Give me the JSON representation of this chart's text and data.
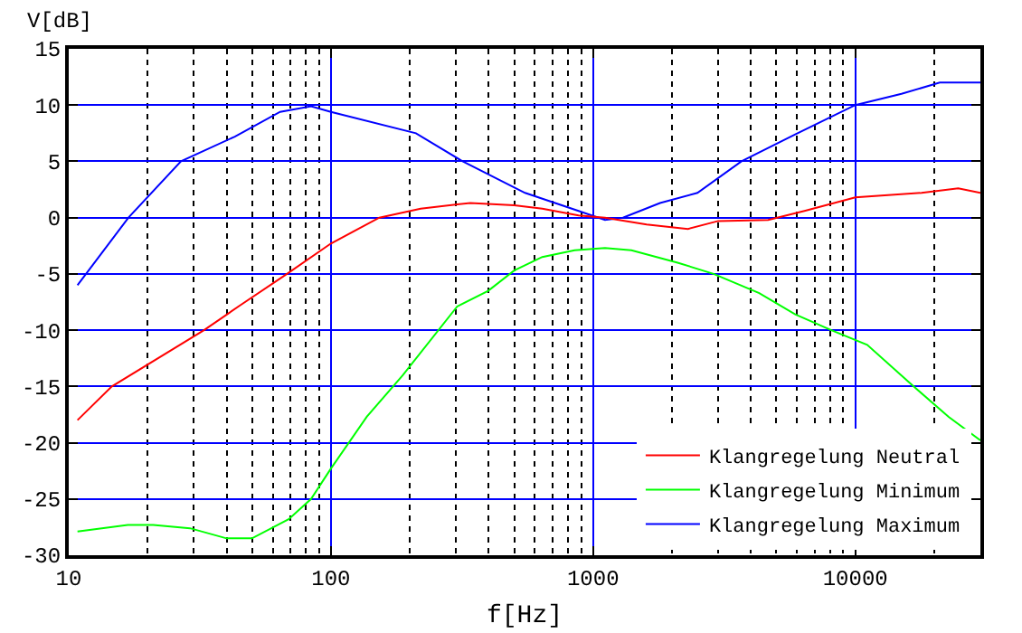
{
  "chart_data": {
    "type": "line",
    "xlabel": "f[Hz]",
    "ylabel": "V[dB]",
    "log": "x",
    "xlim": [
      10,
      30000
    ],
    "xticks": [
      10,
      {
        "value": 20,
        "label": null
      },
      {
        "value": 30,
        "label": null
      },
      {
        "value": 40,
        "label": null
      },
      {
        "value": 50,
        "label": null
      },
      {
        "value": 60,
        "label": null
      },
      {
        "value": 70,
        "label": null
      },
      {
        "value": 80,
        "label": null
      },
      {
        "value": 90,
        "label": null
      },
      100,
      {
        "value": 200,
        "label": null
      },
      {
        "value": 300,
        "label": null
      },
      {
        "value": 400,
        "label": null
      },
      {
        "value": 500,
        "label": null
      },
      {
        "value": 600,
        "label": null
      },
      {
        "value": 700,
        "label": null
      },
      {
        "value": 800,
        "label": null
      },
      {
        "value": 900,
        "label": null
      },
      1000,
      {
        "value": 2000,
        "label": null
      },
      {
        "value": 3000,
        "label": null
      },
      {
        "value": 4000,
        "label": null
      },
      {
        "value": 5000,
        "label": null
      },
      {
        "value": 6000,
        "label": null
      },
      {
        "value": 7000,
        "label": null
      },
      {
        "value": 8000,
        "label": null
      },
      {
        "value": 9000,
        "label": null
      },
      10000,
      {
        "value": 20000,
        "label": null
      }
    ],
    "ylim": [
      -30,
      15
    ],
    "yticks": [
      -30,
      -25,
      -20,
      -15,
      -10,
      -5,
      0,
      5,
      10,
      15
    ],
    "grid": true,
    "legend": "bottom right",
    "marker": "none",
    "line_style": "solid",
    "series": [
      {
        "name": "Klangregelung Neutral",
        "color": "#ff0000",
        "x": [
          10.8,
          14.6,
          32.8,
          45,
          67,
          100,
          153,
          220,
          340,
          500,
          640,
          880,
          1110,
          1600,
          2300,
          3000,
          4650,
          6400,
          10000,
          17900,
          24700,
          30000
        ],
        "values": [
          -18,
          -15,
          -10,
          -7.8,
          -5.1,
          -2.3,
          0,
          0.8,
          1.3,
          1.1,
          0.8,
          0.2,
          0,
          -0.6,
          -1,
          -0.3,
          -0.2,
          0.6,
          1.8,
          2.2,
          2.6,
          2.2
        ]
      },
      {
        "name": "Klangregelung Minimum",
        "color": "#00ff00",
        "x": [
          10.8,
          16.8,
          21,
          29,
          40,
          50,
          69,
          84,
          100,
          137,
          188,
          303,
          398,
          500,
          640,
          850,
          1110,
          1400,
          2100,
          2880,
          4300,
          5900,
          8100,
          11100,
          16500,
          22700,
          30000
        ],
        "values": [
          -27.9,
          -27.3,
          -27.3,
          -27.6,
          -28.5,
          -28.5,
          -26.8,
          -25,
          -22.3,
          -17.7,
          -14,
          -7.9,
          -6.5,
          -4.7,
          -3.5,
          -2.9,
          -2.7,
          -2.9,
          -4,
          -5,
          -6.7,
          -8.6,
          -10,
          -11.3,
          -14.9,
          -17.7,
          -19.8
        ]
      },
      {
        "name": "Klangregelung Maximum",
        "color": "#0000ff",
        "x": [
          10.8,
          16.9,
          26.8,
          43,
          64,
          84,
          100,
          211,
          318,
          550,
          880,
          1110,
          1300,
          1800,
          2500,
          3680,
          5900,
          10000,
          15000,
          21000,
          30000
        ],
        "values": [
          -6,
          0,
          5,
          7.2,
          9.4,
          9.9,
          9.4,
          7.5,
          5,
          2.2,
          0.6,
          -0.2,
          0,
          1.3,
          2.2,
          5,
          7.4,
          10,
          11,
          12,
          12
        ]
      }
    ]
  }
}
